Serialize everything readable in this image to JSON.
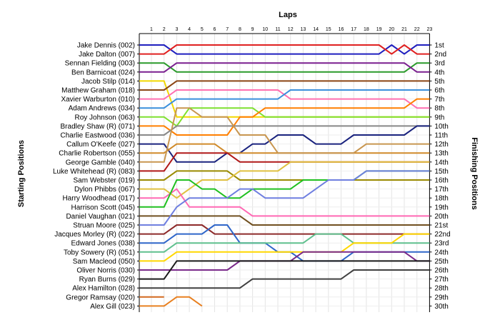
{
  "chart_data": {
    "type": "line",
    "title": "Laps",
    "ylabel_left": "Starting Positions",
    "ylabel_right": "Finishing Positions",
    "grid": true,
    "laps": [
      "1",
      "2",
      "3",
      "4",
      "5",
      "6",
      "7",
      "8",
      "9",
      "10",
      "11",
      "12",
      "13",
      "14",
      "15",
      "16",
      "17",
      "18",
      "19",
      "20",
      "21",
      "22",
      "23"
    ],
    "drivers": [
      "Jake Dennis (002)",
      "Jake Dalton (007)",
      "Sennan Fielding (003)",
      "Ben Barnicoat (024)",
      "Jacob Stilp (014)",
      "Matthew Graham (018)",
      "Xavier Warburton (010)",
      "Adam Andrews (034)",
      "Roy Johnson (063)",
      "Bradley Shaw (R) (071)",
      "Charlie Eastwood (036)",
      "Callum O'Keefe (027)",
      "Charlie Robertson (055)",
      "George Gamble (040)",
      "Luke Whitehead (R) (083)",
      "Sam Webster (019)",
      "Dylon Phibbs (067)",
      "Harry Woodhead (017)",
      "Harrison Scott (045)",
      "Daniel Vaughan (021)",
      "Struan Moore (025)",
      "Jacques Morley (R) (022)",
      "Edward Jones (038)",
      "Toby Sowery (R) (051)",
      "Sam Macleod (050)",
      "Oliver Norris (030)",
      "Ryan Burns (029)",
      "Alex Hamilton (028)",
      "Gregor Ramsay (020)",
      "Alex Gill (023)"
    ],
    "finishing_labels": [
      "1st",
      "2nd",
      "3rd",
      "4th",
      "5th",
      "6th",
      "7th",
      "8th",
      "9th",
      "10th",
      "11th",
      "12th",
      "13th",
      "14th",
      "15th",
      "16th",
      "17th",
      "18th",
      "19th",
      "20th",
      "21st",
      "22nd",
      "23rd",
      "24th",
      "25th",
      "26th",
      "27th",
      "28th",
      "29th",
      "30th"
    ],
    "series": [
      {
        "color": "#1f1fbf",
        "positions": [
          1,
          1,
          1,
          2,
          2,
          2,
          2,
          2,
          2,
          2,
          2,
          2,
          2,
          2,
          2,
          2,
          2,
          2,
          2,
          2,
          1,
          2,
          1,
          1
        ]
      },
      {
        "color": "#e02020",
        "positions": [
          2,
          2,
          2,
          1,
          1,
          1,
          1,
          1,
          1,
          1,
          1,
          1,
          1,
          1,
          1,
          1,
          1,
          1,
          1,
          1,
          2,
          1,
          2,
          2
        ]
      },
      {
        "color": "#2a9a2a",
        "positions": [
          3,
          3,
          3,
          4,
          4,
          4,
          4,
          4,
          4,
          4,
          4,
          4,
          4,
          4,
          4,
          4,
          4,
          4,
          4,
          4,
          4,
          4,
          3,
          3
        ]
      },
      {
        "color": "#7a1f8f",
        "positions": [
          4,
          4,
          4,
          3,
          3,
          3,
          3,
          3,
          3,
          3,
          3,
          3,
          3,
          3,
          3,
          3,
          3,
          3,
          3,
          3,
          3,
          3,
          4,
          4
        ]
      },
      {
        "color": "#f2d800",
        "positions": [
          5,
          5,
          5,
          9,
          9,
          9,
          9,
          9,
          9,
          9,
          9,
          9,
          9,
          9,
          9,
          9,
          9,
          9,
          9,
          9,
          9,
          9,
          9,
          9
        ]
      },
      {
        "color": "#8b4513",
        "positions": [
          6,
          6,
          6,
          5,
          5,
          5,
          5,
          5,
          5,
          5,
          5,
          5,
          5,
          5,
          5,
          5,
          5,
          5,
          5,
          5,
          5,
          5,
          5,
          5
        ]
      },
      {
        "color": "#ff6fb0",
        "positions": [
          7,
          7,
          7,
          6,
          6,
          6,
          6,
          6,
          6,
          6,
          6,
          6,
          7,
          7,
          7,
          7,
          7,
          7,
          7,
          7,
          7,
          7,
          8,
          8
        ]
      },
      {
        "color": "#3a8fdc",
        "positions": [
          8,
          8,
          8,
          7,
          7,
          7,
          7,
          7,
          7,
          7,
          7,
          7,
          6,
          6,
          6,
          6,
          6,
          6,
          6,
          6,
          6,
          6,
          6,
          6
        ]
      },
      {
        "color": "#7fe030",
        "positions": [
          9,
          9,
          9,
          10,
          8,
          8,
          8,
          8,
          8,
          8,
          9,
          9,
          9,
          9,
          9,
          9,
          9,
          9,
          9,
          9,
          9,
          9,
          9,
          9
        ]
      },
      {
        "color": "#ff7f00",
        "positions": [
          10,
          10,
          10,
          11,
          11,
          11,
          11,
          11,
          9,
          9,
          8,
          8,
          8,
          8,
          8,
          8,
          8,
          8,
          8,
          8,
          8,
          8,
          7,
          7
        ]
      },
      {
        "color": "#888888",
        "positions": [
          11,
          11,
          11,
          10,
          10,
          10,
          10,
          10,
          10,
          10,
          10,
          10,
          10,
          10,
          10,
          10,
          10,
          10,
          10,
          10,
          10,
          10,
          10,
          10
        ]
      },
      {
        "color": "#1a237e",
        "positions": [
          12,
          12,
          12,
          14,
          14,
          14,
          14,
          13,
          13,
          12,
          12,
          11,
          11,
          11,
          12,
          12,
          12,
          11,
          11,
          11,
          11,
          11,
          10,
          10
        ]
      },
      {
        "color": "#d08a2a",
        "positions": [
          13,
          13,
          13,
          12,
          12,
          12,
          12,
          13,
          13,
          13,
          13,
          13,
          13,
          13,
          13,
          13,
          13,
          13,
          13,
          13,
          13,
          13,
          13,
          13
        ]
      },
      {
        "color": "#c89650",
        "positions": [
          14,
          14,
          14,
          8,
          8,
          9,
          9,
          9,
          11,
          11,
          11,
          13,
          13,
          13,
          13,
          13,
          13,
          13,
          12,
          12,
          12,
          12,
          12,
          12
        ]
      },
      {
        "color": "#b01818",
        "positions": [
          15,
          15,
          15,
          13,
          13,
          13,
          13,
          13,
          14,
          14,
          14,
          14,
          14,
          14,
          14,
          14,
          14,
          14,
          14,
          14,
          14,
          14,
          14,
          14
        ]
      },
      {
        "color": "#9a8a00",
        "positions": [
          16,
          16,
          16,
          15,
          15,
          15,
          15,
          15,
          16,
          16,
          16,
          16,
          16,
          16,
          16,
          16,
          16,
          16,
          16,
          16,
          16,
          16,
          16,
          16
        ]
      },
      {
        "color": "#e0c040",
        "positions": [
          17,
          17,
          17,
          18,
          17,
          16,
          16,
          16,
          15,
          15,
          15,
          15,
          14,
          14,
          14,
          14,
          14,
          14,
          14,
          14,
          14,
          14,
          14,
          14
        ]
      },
      {
        "color": "#ff69b4",
        "positions": [
          18,
          18,
          18,
          17,
          19,
          19,
          19,
          19,
          19,
          20,
          20,
          20,
          20,
          20,
          20,
          20,
          20,
          20,
          20,
          20,
          20,
          20,
          20,
          20
        ]
      },
      {
        "color": "#20c020",
        "positions": [
          19,
          19,
          19,
          16,
          16,
          17,
          17,
          18,
          18,
          17,
          17,
          17,
          17,
          16,
          16,
          16,
          16,
          16,
          15,
          15,
          15,
          15,
          15,
          15
        ]
      },
      {
        "color": "#705020",
        "positions": [
          20,
          20,
          20,
          20,
          20,
          20,
          20,
          20,
          20,
          21,
          21,
          21,
          21,
          21,
          21,
          21,
          21,
          21,
          21,
          21,
          21,
          21,
          21,
          21
        ]
      },
      {
        "color": "#6f7fe0",
        "positions": [
          21,
          21,
          21,
          19,
          18,
          18,
          18,
          18,
          17,
          17,
          18,
          18,
          18,
          18,
          17,
          16,
          16,
          16,
          15,
          15,
          15,
          15,
          15,
          15
        ]
      },
      {
        "color": "#8d2a2a",
        "positions": [
          22,
          22,
          22,
          21,
          21,
          21,
          22,
          22,
          22,
          22,
          22,
          22,
          22,
          22,
          22,
          22,
          22,
          22,
          22,
          22,
          22,
          22,
          22,
          22
        ]
      },
      {
        "color": "#2f66c9",
        "positions": [
          23,
          23,
          23,
          22,
          22,
          22,
          21,
          21,
          23,
          23,
          23,
          24,
          24,
          25,
          25,
          25,
          25,
          24,
          24,
          24,
          24,
          24,
          24,
          24
        ]
      },
      {
        "color": "#5fc08e",
        "positions": [
          24,
          24,
          24,
          23,
          23,
          23,
          23,
          23,
          23,
          23,
          23,
          23,
          23,
          23,
          22,
          22,
          22,
          23,
          23,
          23,
          23,
          23,
          23,
          23
        ]
      },
      {
        "color": "#ffd700",
        "positions": [
          25,
          25,
          25,
          24,
          24,
          24,
          24,
          24,
          24,
          24,
          24,
          24,
          24,
          24,
          24,
          24,
          24,
          23,
          23,
          23,
          23,
          22,
          22,
          22
        ]
      },
      {
        "color": "#7a2a8a",
        "positions": [
          26,
          26,
          26,
          26,
          26,
          26,
          26,
          26,
          25,
          25,
          25,
          25,
          25,
          24,
          24,
          24,
          24,
          24,
          24,
          24,
          24,
          24,
          25,
          25
        ]
      },
      {
        "color": "#1a1a1a",
        "positions": [
          27,
          27,
          27,
          25,
          25,
          25,
          25,
          25,
          25,
          25,
          25,
          25,
          25,
          25,
          25,
          25,
          25,
          25,
          25,
          25,
          25,
          25,
          25,
          25
        ]
      },
      {
        "color": "#404040",
        "positions": [
          28,
          28,
          28,
          28,
          28,
          28,
          28,
          28,
          28,
          27,
          27,
          27,
          27,
          27,
          27,
          27,
          27,
          26,
          26,
          26,
          26,
          26,
          26,
          26
        ]
      },
      {
        "color": "#d2691e",
        "positions": [
          29,
          29,
          29
        ]
      },
      {
        "color": "#e88020",
        "positions": [
          30,
          30,
          30,
          29,
          29,
          30
        ]
      }
    ]
  }
}
